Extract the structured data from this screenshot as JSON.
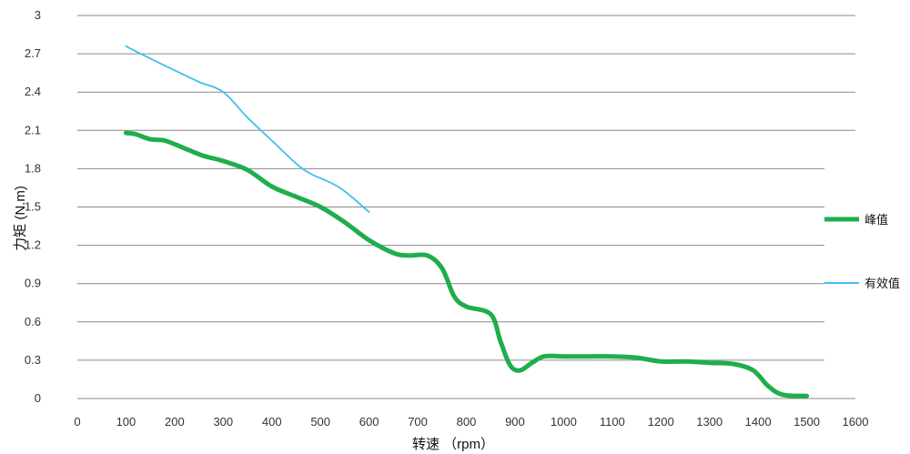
{
  "chart_data": {
    "type": "line",
    "xlabel": "转速  （rpm）",
    "ylabel": "力矩 (N.m)",
    "xlim": [
      0,
      1600
    ],
    "ylim": [
      0,
      3
    ],
    "x_ticks": [
      "0",
      "100",
      "200",
      "300",
      "400",
      "500",
      "600",
      "700",
      "800",
      "900",
      "1000",
      "1100",
      "1200",
      "1300",
      "1400",
      "1500",
      "1600"
    ],
    "y_ticks": [
      "0",
      "0.3",
      "0.6",
      "0.9",
      "1.2",
      "1.5",
      "1.8",
      "2.1",
      "2.4",
      "2.7",
      "3"
    ],
    "grid": "horizontal",
    "legend_position": "right",
    "series": [
      {
        "name": "峰值",
        "color": "#1fae4b",
        "line_width": "thick",
        "points": [
          [
            100,
            2.08
          ],
          [
            120,
            2.07
          ],
          [
            150,
            2.03
          ],
          [
            180,
            2.02
          ],
          [
            220,
            1.96
          ],
          [
            260,
            1.9
          ],
          [
            300,
            1.86
          ],
          [
            350,
            1.79
          ],
          [
            400,
            1.66
          ],
          [
            450,
            1.58
          ],
          [
            500,
            1.5
          ],
          [
            550,
            1.38
          ],
          [
            600,
            1.24
          ],
          [
            650,
            1.14
          ],
          [
            680,
            1.12
          ],
          [
            720,
            1.12
          ],
          [
            750,
            1.02
          ],
          [
            775,
            0.8
          ],
          [
            800,
            0.72
          ],
          [
            850,
            0.66
          ],
          [
            870,
            0.45
          ],
          [
            890,
            0.26
          ],
          [
            910,
            0.22
          ],
          [
            935,
            0.28
          ],
          [
            960,
            0.33
          ],
          [
            1000,
            0.33
          ],
          [
            1050,
            0.33
          ],
          [
            1100,
            0.33
          ],
          [
            1150,
            0.32
          ],
          [
            1200,
            0.29
          ],
          [
            1250,
            0.29
          ],
          [
            1300,
            0.28
          ],
          [
            1350,
            0.27
          ],
          [
            1390,
            0.22
          ],
          [
            1420,
            0.1
          ],
          [
            1450,
            0.03
          ],
          [
            1500,
            0.02
          ]
        ]
      },
      {
        "name": "有效值",
        "color": "#3fbfee",
        "line_width": "thin",
        "points": [
          [
            100,
            2.76
          ],
          [
            130,
            2.7
          ],
          [
            200,
            2.57
          ],
          [
            250,
            2.48
          ],
          [
            300,
            2.4
          ],
          [
            350,
            2.2
          ],
          [
            400,
            2.02
          ],
          [
            450,
            1.84
          ],
          [
            480,
            1.76
          ],
          [
            540,
            1.65
          ],
          [
            600,
            1.46
          ]
        ]
      }
    ]
  }
}
